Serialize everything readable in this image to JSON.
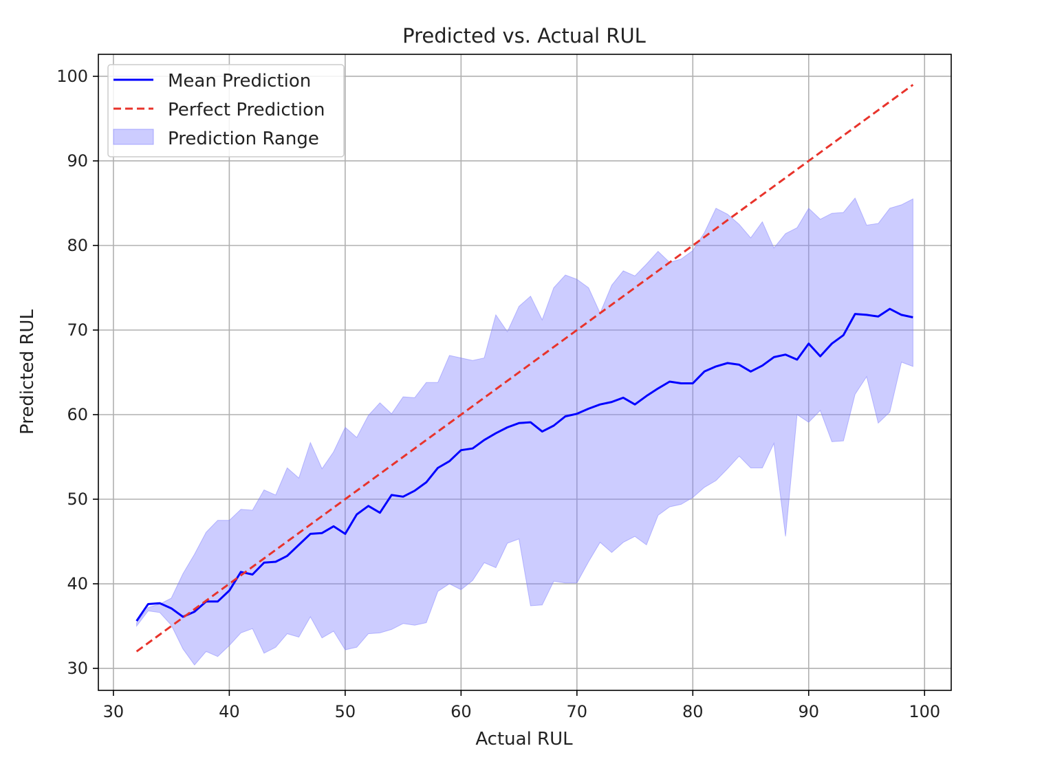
{
  "chart_data": {
    "type": "line",
    "title": "Predicted vs. Actual RUL",
    "xlabel": "Actual RUL",
    "ylabel": "Predicted RUL",
    "xlim": [
      28.7,
      102.3
    ],
    "ylim": [
      27.4,
      102.6
    ],
    "grid": true,
    "legend_position": "top-left",
    "x_ticks": [
      30,
      40,
      50,
      60,
      70,
      80,
      90,
      100
    ],
    "y_ticks": [
      30,
      40,
      50,
      60,
      70,
      80,
      90,
      100
    ],
    "x": [
      32,
      33,
      34,
      35,
      36,
      37,
      38,
      39,
      40,
      41,
      42,
      43,
      44,
      45,
      46,
      47,
      48,
      49,
      50,
      51,
      52,
      53,
      54,
      55,
      56,
      57,
      58,
      59,
      60,
      61,
      62,
      63,
      64,
      65,
      66,
      67,
      68,
      69,
      70,
      71,
      72,
      73,
      74,
      75,
      76,
      77,
      78,
      79,
      80,
      81,
      82,
      83,
      84,
      85,
      86,
      87,
      88,
      89,
      90,
      91,
      92,
      93,
      94,
      95,
      96,
      97,
      98,
      99
    ],
    "series": [
      {
        "name": "Mean Prediction",
        "style": "solid",
        "color": "#0000ff",
        "values": [
          35.6,
          37.6,
          37.7,
          37.1,
          36.1,
          36.7,
          37.9,
          37.9,
          39.2,
          41.4,
          41.1,
          42.5,
          42.6,
          43.3,
          44.6,
          45.9,
          46.0,
          46.8,
          45.9,
          48.2,
          49.2,
          48.4,
          50.5,
          50.3,
          51.0,
          52.0,
          53.7,
          54.5,
          55.8,
          56.0,
          57.0,
          57.8,
          58.5,
          59.0,
          59.1,
          58.0,
          58.7,
          59.8,
          60.1,
          60.7,
          61.2,
          61.5,
          62.0,
          61.2,
          62.2,
          63.1,
          63.9,
          63.7,
          63.7,
          65.1,
          65.7,
          66.1,
          65.9,
          65.1,
          65.8,
          66.8,
          67.1,
          66.5,
          68.4,
          66.9,
          68.4,
          69.4,
          71.9,
          71.8,
          71.6,
          72.5,
          71.8,
          71.5
        ]
      },
      {
        "name": "Perfect Prediction",
        "style": "dashed",
        "color": "#e8332b",
        "x": [
          32,
          99
        ],
        "values": [
          32,
          99
        ]
      }
    ],
    "band": {
      "name": "Prediction Range",
      "color": "#7f7fff",
      "upper": [
        35.4,
        37.2,
        37.6,
        38.3,
        41.2,
        43.5,
        46.1,
        47.5,
        47.5,
        48.8,
        48.7,
        51.1,
        50.5,
        53.7,
        52.5,
        56.7,
        53.6,
        55.6,
        58.5,
        57.3,
        59.9,
        61.4,
        60.1,
        62.1,
        62.0,
        63.8,
        63.8,
        67.0,
        66.7,
        66.4,
        66.7,
        71.8,
        69.8,
        72.8,
        74.0,
        71.2,
        75.0,
        76.5,
        76.0,
        75.0,
        72.0,
        75.3,
        77.0,
        76.4,
        77.8,
        79.3,
        78.0,
        78.4,
        79.4,
        81.5,
        84.4,
        83.7,
        82.5,
        80.9,
        82.8,
        79.7,
        81.4,
        82.1,
        84.4,
        83.1,
        83.8,
        83.9,
        85.6,
        82.4,
        82.6,
        84.4,
        84.8,
        85.5
      ],
      "lower": [
        35.0,
        36.8,
        36.6,
        35.1,
        32.3,
        30.4,
        32.0,
        31.4,
        32.7,
        34.2,
        34.7,
        31.8,
        32.5,
        34.1,
        33.7,
        36.1,
        33.6,
        34.4,
        32.2,
        32.5,
        34.1,
        34.2,
        34.6,
        35.3,
        35.1,
        35.4,
        39.1,
        40.0,
        39.3,
        40.4,
        42.5,
        41.9,
        44.8,
        45.3,
        37.4,
        37.5,
        40.3,
        40.1,
        40.1,
        42.6,
        44.9,
        43.7,
        44.9,
        45.6,
        44.6,
        48.1,
        49.1,
        49.4,
        50.2,
        51.4,
        52.2,
        53.6,
        55.1,
        53.7,
        53.7,
        56.6,
        45.6,
        60.0,
        59.1,
        60.5,
        56.8,
        56.9,
        62.4,
        64.5,
        59.0,
        60.3,
        66.2,
        65.7
      ]
    }
  }
}
